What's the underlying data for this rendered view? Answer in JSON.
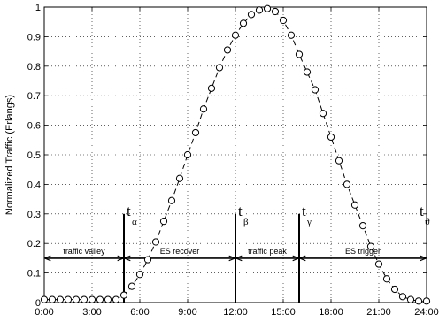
{
  "chart_data": {
    "type": "scatter",
    "title": "",
    "xlabel": "",
    "ylabel": "Normalized Traffic (Erlangs)",
    "xlim": [
      0,
      24
    ],
    "ylim": [
      0,
      1
    ],
    "x_ticks": [
      "0:00",
      "3:00",
      "6:00",
      "9:00",
      "12:00",
      "15:00",
      "18:00",
      "21:00",
      "24:00"
    ],
    "y_ticks": [
      "0",
      "0.1",
      "0.2",
      "0.3",
      "0.4",
      "0.5",
      "0.6",
      "0.7",
      "0.8",
      "0.9",
      "1"
    ],
    "grid": true,
    "line_style": "dashed",
    "marker": "circle",
    "series": [
      {
        "x": [
          0,
          0.5,
          1,
          1.5,
          2,
          2.5,
          3,
          3.5,
          4,
          4.5,
          5,
          5.5,
          6,
          6.5,
          7,
          7.5,
          8,
          8.5,
          9,
          9.5,
          10,
          10.5,
          11,
          11.5,
          12,
          12.5,
          13,
          13.5,
          14,
          14.5,
          15,
          15.5,
          16,
          16.5,
          17,
          17.5,
          18,
          18.5,
          19,
          19.5,
          20,
          20.5,
          21,
          21.5,
          22,
          22.5,
          23,
          23.5,
          24
        ],
        "y": [
          0.01,
          0.01,
          0.01,
          0.01,
          0.01,
          0.01,
          0.01,
          0.01,
          0.01,
          0.01,
          0.025,
          0.055,
          0.095,
          0.145,
          0.205,
          0.275,
          0.345,
          0.42,
          0.5,
          0.575,
          0.655,
          0.725,
          0.795,
          0.855,
          0.905,
          0.945,
          0.975,
          0.99,
          0.995,
          0.985,
          0.955,
          0.905,
          0.84,
          0.78,
          0.72,
          0.64,
          0.56,
          0.48,
          0.4,
          0.33,
          0.26,
          0.19,
          0.13,
          0.08,
          0.045,
          0.02,
          0.01,
          0.005,
          0.005
        ]
      }
    ],
    "markers": [
      {
        "label": "t",
        "sub": "α",
        "x": 5
      },
      {
        "label": "t",
        "sub": "β",
        "x": 12
      },
      {
        "label": "t",
        "sub": "γ",
        "x": 16
      },
      {
        "label": "t",
        "sub": "ϑ",
        "x": 24
      }
    ],
    "regions": [
      {
        "label": "traffic valley",
        "x_start": 0,
        "x_end": 5
      },
      {
        "label": "ES recover",
        "x_start": 5,
        "x_end": 12
      },
      {
        "label": "traffic peak",
        "x_start": 12,
        "x_end": 16
      },
      {
        "label": "ES trigger",
        "x_start": 16,
        "x_end": 24
      }
    ],
    "region_arrow_y": 0.15
  }
}
